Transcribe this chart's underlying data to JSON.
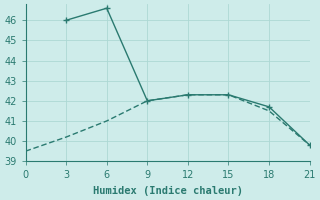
{
  "xlabel": "Humidex (Indice chaleur)",
  "background_color": "#ceecea",
  "grid_color": "#add8d4",
  "line_color": "#2a7a70",
  "xlim": [
    0,
    21
  ],
  "ylim": [
    39,
    46.8
  ],
  "xticks": [
    0,
    3,
    6,
    9,
    12,
    15,
    18,
    21
  ],
  "yticks": [
    39,
    40,
    41,
    42,
    43,
    44,
    45,
    46
  ],
  "line1_x": [
    0,
    3,
    6,
    9,
    12,
    15,
    18,
    21
  ],
  "line1_y": [
    39.5,
    40.2,
    41.0,
    42.0,
    42.3,
    42.3,
    41.5,
    39.8
  ],
  "line2_x": [
    3,
    6,
    9,
    12,
    15,
    18,
    21
  ],
  "line2_y": [
    46.0,
    46.6,
    42.0,
    42.3,
    42.3,
    41.7,
    39.8
  ],
  "xlabel_fontsize": 7.5,
  "tick_fontsize": 7,
  "linewidth": 1.0,
  "marker": "+",
  "markersize": 4
}
